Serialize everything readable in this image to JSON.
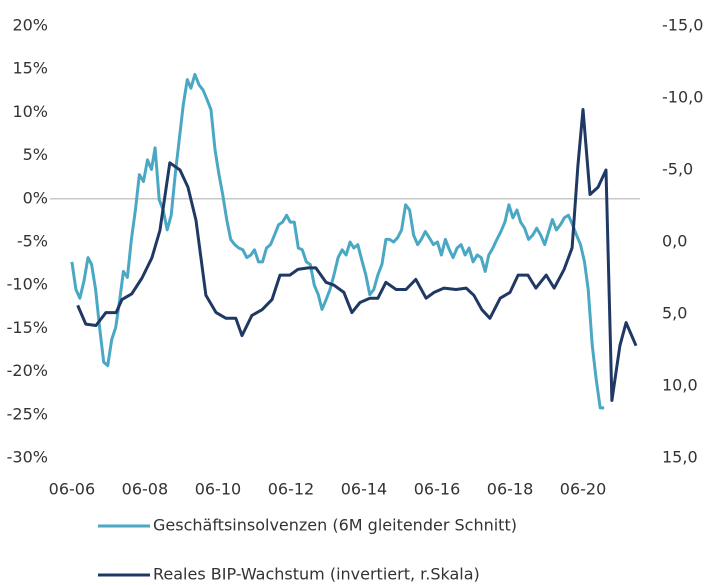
{
  "chart_data": {
    "type": "line",
    "series": [
      {
        "name": "Geschäftsinsolvenzen (6M gleitender Schnitt)",
        "color": "#4aa8c4",
        "x": [
          2006.42,
          2006.53,
          2006.64,
          2006.75,
          2006.86,
          2006.96,
          2007.07,
          2007.18,
          2007.29,
          2007.4,
          2007.51,
          2007.62,
          2007.73,
          2007.83,
          2007.94,
          2008.05,
          2008.16,
          2008.27,
          2008.38,
          2008.49,
          2008.6,
          2008.7,
          2008.81,
          2008.92,
          2009.03,
          2009.14,
          2009.25,
          2009.36,
          2009.47,
          2009.58,
          2009.68,
          2009.79,
          2009.9,
          2010.01,
          2010.12,
          2010.23,
          2010.34,
          2010.45,
          2010.55,
          2010.66,
          2010.77,
          2010.88,
          2010.99,
          2011.1,
          2011.21,
          2011.32,
          2011.42,
          2011.53,
          2011.64,
          2011.75,
          2011.86,
          2011.97,
          2012.08,
          2012.19,
          2012.3,
          2012.4,
          2012.51,
          2012.62,
          2012.73,
          2012.84,
          2012.95,
          2013.06,
          2013.17,
          2013.27,
          2013.38,
          2013.49,
          2013.6,
          2013.71,
          2013.82,
          2013.93,
          2014.04,
          2014.14,
          2014.25,
          2014.36,
          2014.47,
          2014.58,
          2014.69,
          2014.8,
          2014.91,
          2015.02,
          2015.12,
          2015.23,
          2015.34,
          2015.45,
          2015.56,
          2015.67,
          2015.78,
          2015.89,
          2015.99,
          2016.1,
          2016.21,
          2016.32,
          2016.43,
          2016.54,
          2016.65,
          2016.76,
          2016.86,
          2016.97,
          2017.08,
          2017.19,
          2017.3,
          2017.41,
          2017.52,
          2017.63,
          2017.74,
          2017.84,
          2017.95,
          2018.06,
          2018.17,
          2018.28,
          2018.39,
          2018.5,
          2018.61,
          2018.71,
          2018.82,
          2018.93,
          2019.04,
          2019.15,
          2019.26,
          2019.37,
          2019.48,
          2019.58,
          2019.69,
          2019.8,
          2019.91,
          2020.02,
          2020.13,
          2020.24,
          2020.35,
          2020.46,
          2020.56,
          2020.67,
          2020.78,
          2020.89,
          2021.0
        ],
        "values": [
          -7.3,
          -10.5,
          -11.5,
          -9.5,
          -6.8,
          -7.6,
          -10.5,
          -15,
          -18.9,
          -19.3,
          -16.3,
          -14.9,
          -11.7,
          -8.4,
          -9.1,
          -4.7,
          -1.3,
          2.8,
          2.0,
          4.5,
          3.4,
          5.9,
          -0.1,
          -1.3,
          -3.6,
          -1.9,
          2.8,
          6.8,
          10.9,
          13.8,
          12.8,
          14.4,
          13.2,
          12.6,
          11.5,
          10.3,
          5.7,
          2.8,
          0.5,
          -2.4,
          -4.7,
          -5.3,
          -5.7,
          -5.9,
          -6.8,
          -6.5,
          -5.9,
          -7.3,
          -7.3,
          -5.7,
          -5.3,
          -4.2,
          -3.0,
          -2.7,
          -1.9,
          -2.7,
          -2.7,
          -5.7,
          -5.9,
          -7.3,
          -7.6,
          -10.0,
          -11.1,
          -12.8,
          -11.7,
          -10.5,
          -8.8,
          -6.8,
          -5.9,
          -6.5,
          -5.0,
          -5.7,
          -5.3,
          -7.1,
          -8.8,
          -11.1,
          -10.5,
          -8.8,
          -7.6,
          -4.7,
          -4.7,
          -5.0,
          -4.5,
          -3.6,
          -0.7,
          -1.3,
          -4.2,
          -5.3,
          -4.7,
          -3.8,
          -4.5,
          -5.3,
          -5.0,
          -6.5,
          -4.7,
          -5.9,
          -6.8,
          -5.7,
          -5.3,
          -6.5,
          -5.7,
          -7.3,
          -6.5,
          -6.8,
          -8.4,
          -6.5,
          -5.7,
          -4.7,
          -3.8,
          -2.7,
          -0.7,
          -2.2,
          -1.3,
          -2.7,
          -3.4,
          -4.7,
          -4.2,
          -3.4,
          -4.2,
          -5.3,
          -3.8,
          -2.4,
          -3.6,
          -3.0,
          -2.2,
          -1.9,
          -3.0,
          -4.2,
          -5.3,
          -7.3,
          -10.5,
          -16.9,
          -20.9,
          -24.2,
          -24.2
        ]
      },
      {
        "name": "Reales BIP-Wachstum (invertiert, r.Skala)",
        "color": "#1f3864",
        "axis": "y2",
        "x": [
          2006.58,
          2006.8,
          2007.08,
          2007.35,
          2007.63,
          2007.79,
          2008.06,
          2008.34,
          2008.61,
          2008.83,
          2009.1,
          2009.38,
          2009.6,
          2009.82,
          2010.09,
          2010.37,
          2010.64,
          2010.91,
          2011.08,
          2011.35,
          2011.63,
          2011.9,
          2012.12,
          2012.39,
          2012.61,
          2012.89,
          2013.1,
          2013.38,
          2013.6,
          2013.87,
          2014.09,
          2014.31,
          2014.58,
          2014.8,
          2015.02,
          2015.3,
          2015.57,
          2015.84,
          2016.12,
          2016.34,
          2016.61,
          2016.94,
          2017.22,
          2017.43,
          2017.65,
          2017.87,
          2018.15,
          2018.42,
          2018.64,
          2018.91,
          2019.13,
          2019.41,
          2019.63,
          2019.9,
          2020.12,
          2020.28,
          2020.42,
          2020.61,
          2020.83,
          2021.05,
          2021.21,
          2021.43,
          2021.6,
          2021.87
        ],
        "values": [
          4.4,
          5.7,
          5.8,
          4.9,
          4.9,
          4.0,
          3.6,
          2.5,
          1.1,
          -0.8,
          -5.5,
          -5.0,
          -3.8,
          -1.5,
          3.7,
          4.9,
          5.3,
          5.3,
          6.5,
          5.1,
          4.7,
          4.0,
          2.3,
          2.3,
          1.9,
          1.8,
          1.8,
          2.8,
          3.0,
          3.5,
          4.9,
          4.2,
          3.9,
          3.9,
          2.8,
          3.3,
          3.3,
          2.6,
          3.9,
          3.5,
          3.2,
          3.3,
          3.2,
          3.7,
          4.7,
          5.3,
          3.9,
          3.5,
          2.3,
          2.3,
          3.2,
          2.3,
          3.2,
          1.9,
          0.4,
          -5.3,
          -9.2,
          -3.3,
          -3.8,
          -5.0,
          11.0,
          7.2,
          5.6,
          7.2
        ]
      }
    ],
    "xlim": [
      2005.82,
      2021.98
    ],
    "xticks": [
      {
        "value": 2006.42,
        "label": "06-06"
      },
      {
        "value": 2008.42,
        "label": "06-08"
      },
      {
        "value": 2010.42,
        "label": "06-10"
      },
      {
        "value": 2012.42,
        "label": "06-12"
      },
      {
        "value": 2014.42,
        "label": "06-14"
      },
      {
        "value": 2016.42,
        "label": "06-16"
      },
      {
        "value": 2018.42,
        "label": "06-18"
      },
      {
        "value": 2020.42,
        "label": "06-20"
      }
    ],
    "ylim": [
      -30,
      20
    ],
    "yticks": [
      {
        "value": 20,
        "label": "20%"
      },
      {
        "value": 15,
        "label": "15%"
      },
      {
        "value": 10,
        "label": "10%"
      },
      {
        "value": 5,
        "label": "5%"
      },
      {
        "value": 0,
        "label": "0%"
      },
      {
        "value": -5,
        "label": "-5%"
      },
      {
        "value": -10,
        "label": "-10%"
      },
      {
        "value": -15,
        "label": "-15%"
      },
      {
        "value": -20,
        "label": "-20%"
      },
      {
        "value": -25,
        "label": "-25%"
      },
      {
        "value": -30,
        "label": "-30%"
      }
    ],
    "y2lim": [
      15,
      -15
    ],
    "y2ticks": [
      {
        "value": -15,
        "label": "-15,0"
      },
      {
        "value": -10,
        "label": "-10,0"
      },
      {
        "value": -5,
        "label": "-5,0"
      },
      {
        "value": 0,
        "label": "0,0"
      },
      {
        "value": 5,
        "label": "5,0"
      },
      {
        "value": 10,
        "label": "10,0"
      },
      {
        "value": 15,
        "label": "15,0"
      }
    ],
    "legend": "bottom"
  }
}
